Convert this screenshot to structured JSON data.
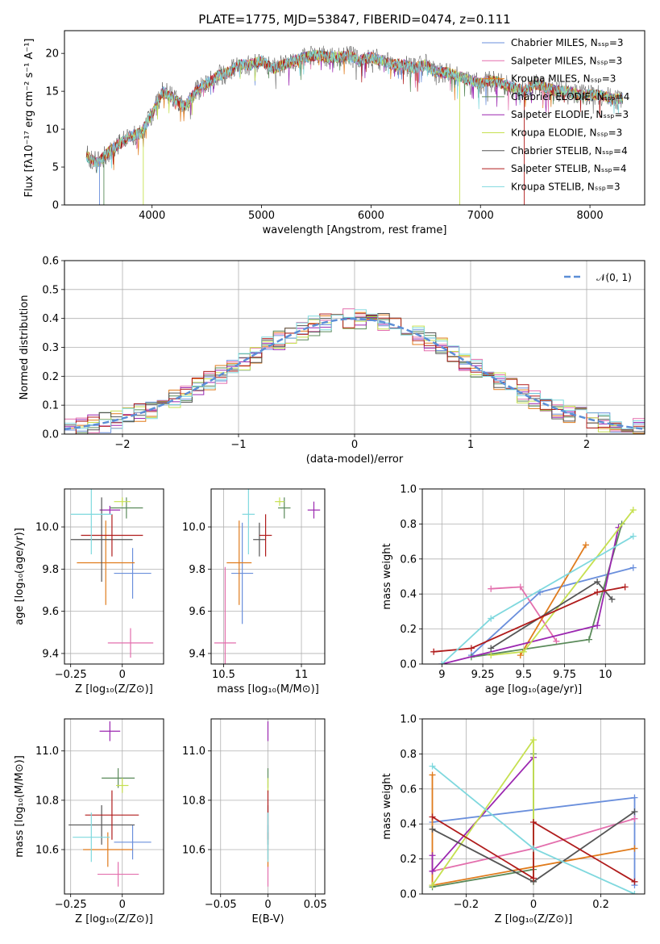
{
  "colors": [
    "#6a8fdc",
    "#e36fad",
    "#e07b1c",
    "#5a8a5a",
    "#9b27b0",
    "#c6e050",
    "#555555",
    "#b01c1c",
    "#7fd8de"
  ],
  "chart_data": [
    {
      "id": "spectrum",
      "type": "line",
      "title": "PLATE=1775, MJD=53847, FIBERID=0474, z=0.111",
      "xlabel": "wavelength [Angstrom, rest frame]",
      "ylabel": "Flux [fλ10⁻¹⁷ erg cm⁻² s⁻¹ A⁻¹]",
      "xlim": [
        3200,
        8500
      ],
      "ylim": [
        0,
        23
      ],
      "xticks": [
        4000,
        5000,
        6000,
        7000,
        8000
      ],
      "yticks": [
        0,
        5,
        10,
        15,
        20
      ],
      "legend_position": "top-right",
      "legend": [
        "Chabrier MILES, Nₛₛₚ=3",
        "Salpeter MILES, Nₛₛₚ=3",
        "Kroupa MILES, Nₛₛₚ=3",
        "Chabrier ELODIE, Nₛₛₚ=4",
        "Salpeter ELODIE, Nₛₛₚ=3",
        "Kroupa ELODIE, Nₛₛₚ=3",
        "Chabrier STELIB, Nₛₛₚ=4",
        "Salpeter STELIB, Nₛₛₚ=4",
        "Kroupa STELIB, Nₛₛₚ=3"
      ],
      "envelope": [
        [
          3400,
          6.5
        ],
        [
          3500,
          5.5
        ],
        [
          3600,
          7
        ],
        [
          3700,
          8
        ],
        [
          3800,
          9
        ],
        [
          3900,
          9.5
        ],
        [
          4000,
          12
        ],
        [
          4100,
          15
        ],
        [
          4200,
          14
        ],
        [
          4300,
          13
        ],
        [
          4400,
          15
        ],
        [
          4500,
          16
        ],
        [
          4600,
          17
        ],
        [
          4700,
          17.5
        ],
        [
          4800,
          18.5
        ],
        [
          4900,
          18.5
        ],
        [
          5000,
          19
        ],
        [
          5100,
          18
        ],
        [
          5200,
          18.5
        ],
        [
          5300,
          19
        ],
        [
          5400,
          19.5
        ],
        [
          5500,
          19.8
        ],
        [
          5600,
          19.5
        ],
        [
          5700,
          19.5
        ],
        [
          5800,
          19.7
        ],
        [
          5900,
          19
        ],
        [
          6000,
          19.5
        ],
        [
          6100,
          19
        ],
        [
          6200,
          18.5
        ],
        [
          6300,
          18.5
        ],
        [
          6400,
          18
        ],
        [
          6500,
          18.5
        ],
        [
          6600,
          17.5
        ],
        [
          6700,
          17.5
        ],
        [
          6800,
          17
        ],
        [
          6900,
          16.5
        ],
        [
          7000,
          16
        ],
        [
          7100,
          16.5
        ],
        [
          7200,
          16
        ],
        [
          7300,
          15.5
        ],
        [
          7400,
          15
        ],
        [
          7500,
          16
        ],
        [
          7600,
          15.5
        ],
        [
          7700,
          15
        ],
        [
          7800,
          15
        ],
        [
          7900,
          14.5
        ],
        [
          8000,
          14.5
        ],
        [
          8100,
          14.5
        ],
        [
          8200,
          14
        ],
        [
          8300,
          14
        ]
      ],
      "dropouts": [
        3520,
        3560,
        3920,
        6810,
        7400
      ]
    },
    {
      "id": "residuals",
      "type": "bar",
      "xlabel": "(data-model)/error",
      "ylabel": "Normed distribution",
      "xlim": [
        -2.5,
        2.5
      ],
      "ylim": [
        0,
        0.6
      ],
      "xticks": [
        -2,
        -1,
        0,
        1,
        2
      ],
      "yticks": [
        0.0,
        0.1,
        0.2,
        0.3,
        0.4,
        0.5,
        0.6
      ],
      "legend": [
        "𝒩(0, 1)"
      ],
      "legend_position": "top-right",
      "bin_width": 0.1,
      "grid": true
    },
    {
      "id": "age-vs-Z",
      "type": "scatter",
      "xlabel": "Z [log₁₀(Z/Z⊙)]",
      "ylabel": "age  [log₁₀(age/yr)]",
      "xlim": [
        -0.28,
        0.2
      ],
      "ylim": [
        9.35,
        10.18
      ],
      "xticks": [
        -0.25,
        0.0
      ],
      "yticks": [
        9.4,
        9.6,
        9.8,
        10.0
      ],
      "points": [
        {
          "x": 0.05,
          "xerr": 0.09,
          "y": 9.78,
          "yerr": 0.12
        },
        {
          "x": 0.04,
          "xerr": 0.11,
          "y": 9.45,
          "yerr": 0.07
        },
        {
          "x": -0.08,
          "xerr": 0.14,
          "y": 9.83,
          "yerr": 0.2
        },
        {
          "x": 0.02,
          "xerr": 0.08,
          "y": 10.09,
          "yerr": 0.05
        },
        {
          "x": -0.06,
          "xerr": 0.05,
          "y": 10.08,
          "yerr": 0.02
        },
        {
          "x": 0.0,
          "xerr": 0.04,
          "y": 10.12,
          "yerr": 0.02
        },
        {
          "x": -0.1,
          "xerr": 0.15,
          "y": 9.94,
          "yerr": 0.2
        },
        {
          "x": -0.05,
          "xerr": 0.15,
          "y": 9.96,
          "yerr": 0.1
        },
        {
          "x": -0.15,
          "xerr": 0.1,
          "y": 10.06,
          "yerr": 0.19
        }
      ]
    },
    {
      "id": "age-vs-mass",
      "type": "scatter",
      "xlabel": "mass [log₁₀(M/M⊙)]",
      "ylabel": "",
      "xlim": [
        10.42,
        11.15
      ],
      "ylim": [
        9.35,
        10.18
      ],
      "xticks": [
        10.5,
        11.0
      ],
      "yticks": [
        9.4,
        9.6,
        9.8,
        10.0
      ],
      "points": [
        {
          "x": 10.62,
          "xerr": 0.07,
          "y": 9.78,
          "yerr": 0.24
        },
        {
          "x": 10.51,
          "xerr": 0.07,
          "y": 9.45,
          "yerr": 0.36
        },
        {
          "x": 10.6,
          "xerr": 0.08,
          "y": 9.83,
          "yerr": 0.2
        },
        {
          "x": 10.89,
          "xerr": 0.04,
          "y": 10.09,
          "yerr": 0.05
        },
        {
          "x": 11.08,
          "xerr": 0.04,
          "y": 10.08,
          "yerr": 0.04
        },
        {
          "x": 10.86,
          "xerr": 0.03,
          "y": 10.12,
          "yerr": 0.02
        },
        {
          "x": 10.73,
          "xerr": 0.04,
          "y": 9.94,
          "yerr": 0.08
        },
        {
          "x": 10.77,
          "xerr": 0.04,
          "y": 9.96,
          "yerr": 0.1
        },
        {
          "x": 10.66,
          "xerr": 0.04,
          "y": 10.06,
          "yerr": 0.19
        }
      ]
    },
    {
      "id": "weight-vs-age",
      "type": "line",
      "xlabel": "age  [log₁₀(age/yr)]",
      "ylabel": "mass weight",
      "xlim": [
        8.88,
        10.24
      ],
      "ylim": [
        0,
        1.0
      ],
      "xticks": [
        9.0,
        9.25,
        9.5,
        9.75,
        10.0
      ],
      "yticks": [
        0.0,
        0.2,
        0.4,
        0.6,
        0.8,
        1.0
      ],
      "series": [
        {
          "points": [
            [
              9.18,
              0.05
            ],
            [
              9.6,
              0.41
            ],
            [
              10.17,
              0.55
            ]
          ]
        },
        {
          "points": [
            [
              9.3,
              0.43
            ],
            [
              9.48,
              0.44
            ],
            [
              9.7,
              0.13
            ]
          ]
        },
        {
          "points": [
            [
              9.48,
              0.05
            ],
            [
              9.88,
              0.68
            ]
          ]
        },
        {
          "points": [
            [
              9.18,
              0.04
            ],
            [
              9.9,
              0.14
            ],
            [
              10.1,
              0.8
            ]
          ]
        },
        {
          "points": [
            [
              9.0,
              0.0
            ],
            [
              9.95,
              0.22
            ],
            [
              10.08,
              0.78
            ]
          ]
        },
        {
          "points": [
            [
              9.3,
              0.05
            ],
            [
              9.5,
              0.07
            ],
            [
              10.17,
              0.88
            ]
          ]
        },
        {
          "points": [
            [
              9.3,
              0.09
            ],
            [
              9.95,
              0.47
            ],
            [
              10.04,
              0.37
            ]
          ]
        },
        {
          "points": [
            [
              8.95,
              0.07
            ],
            [
              9.18,
              0.09
            ],
            [
              9.95,
              0.41
            ],
            [
              10.12,
              0.44
            ]
          ]
        },
        {
          "points": [
            [
              9.0,
              0.0
            ],
            [
              9.3,
              0.26
            ],
            [
              10.17,
              0.73
            ]
          ]
        }
      ]
    },
    {
      "id": "mass-vs-Z",
      "type": "scatter",
      "xlabel": "Z [log₁₀(Z/Z⊙)]",
      "ylabel": "mass [log₁₀(M/M⊙)]",
      "xlim": [
        -0.28,
        0.2
      ],
      "ylim": [
        10.42,
        11.13
      ],
      "xticks": [
        -0.25,
        0.0
      ],
      "yticks": [
        10.6,
        10.8,
        11.0
      ],
      "points": [
        {
          "x": 0.05,
          "xerr": 0.09,
          "y": 10.63,
          "yerr": 0.07
        },
        {
          "x": -0.02,
          "xerr": 0.1,
          "y": 10.5,
          "yerr": 0.05
        },
        {
          "x": -0.07,
          "xerr": 0.12,
          "y": 10.6,
          "yerr": 0.07
        },
        {
          "x": -0.02,
          "xerr": 0.08,
          "y": 10.89,
          "yerr": 0.04
        },
        {
          "x": -0.06,
          "xerr": 0.05,
          "y": 11.08,
          "yerr": 0.04
        },
        {
          "x": 0.0,
          "xerr": 0.03,
          "y": 10.86,
          "yerr": 0.03
        },
        {
          "x": -0.1,
          "xerr": 0.16,
          "y": 10.7,
          "yerr": 0.08
        },
        {
          "x": -0.05,
          "xerr": 0.13,
          "y": 10.74,
          "yerr": 0.1
        },
        {
          "x": -0.15,
          "xerr": 0.09,
          "y": 10.65,
          "yerr": 0.1
        }
      ]
    },
    {
      "id": "mass-vs-EBV",
      "type": "scatter",
      "xlabel": "E(B-V)",
      "ylabel": "",
      "xlim": [
        -0.06,
        0.06
      ],
      "ylim": [
        10.42,
        11.13
      ],
      "xticks": [
        -0.05,
        0.0,
        0.05
      ],
      "yticks": [
        10.6,
        10.8,
        11.0
      ],
      "points": [
        {
          "x": 0,
          "xerr": 0,
          "y": 10.63,
          "yerr": 0.07
        },
        {
          "x": 0,
          "xerr": 0,
          "y": 10.5,
          "yerr": 0.05
        },
        {
          "x": 0,
          "xerr": 0,
          "y": 10.6,
          "yerr": 0.07
        },
        {
          "x": 0,
          "xerr": 0,
          "y": 10.89,
          "yerr": 0.04
        },
        {
          "x": 0,
          "xerr": 0,
          "y": 11.08,
          "yerr": 0.04
        },
        {
          "x": 0,
          "xerr": 0,
          "y": 10.86,
          "yerr": 0.03
        },
        {
          "x": 0,
          "xerr": 0,
          "y": 10.7,
          "yerr": 0.08
        },
        {
          "x": 0,
          "xerr": 0,
          "y": 10.74,
          "yerr": 0.1
        },
        {
          "x": 0,
          "xerr": 0,
          "y": 10.65,
          "yerr": 0.1
        }
      ]
    },
    {
      "id": "weight-vs-Z",
      "type": "line",
      "xlabel": "Z [log₁₀(Z/Z⊙)]",
      "ylabel": "mass weight",
      "xlim": [
        -0.33,
        0.33
      ],
      "ylim": [
        0,
        1.0
      ],
      "xticks": [
        -0.2,
        0.0,
        0.2
      ],
      "yticks": [
        0.0,
        0.2,
        0.4,
        0.6,
        0.8,
        1.0
      ],
      "series": [
        {
          "points": [
            [
              -0.3,
              0.41
            ],
            [
              0.3,
              0.55
            ],
            [
              0.3,
              0.05
            ]
          ]
        },
        {
          "points": [
            [
              -0.3,
              0.13
            ],
            [
              0.0,
              0.26
            ],
            [
              0.3,
              0.43
            ]
          ]
        },
        {
          "points": [
            [
              -0.3,
              0.68
            ],
            [
              -0.3,
              0.05
            ],
            [
              0.3,
              0.26
            ]
          ]
        },
        {
          "points": [
            [
              -0.3,
              0.04
            ],
            [
              0.0,
              0.14
            ],
            [
              0.0,
              0.8
            ]
          ]
        },
        {
          "points": [
            [
              -0.3,
              0.22
            ],
            [
              -0.3,
              0.13
            ],
            [
              0.0,
              0.78
            ]
          ]
        },
        {
          "points": [
            [
              -0.3,
              0.05
            ],
            [
              0.0,
              0.88
            ],
            [
              0.0,
              0.07
            ]
          ]
        },
        {
          "points": [
            [
              -0.3,
              0.37
            ],
            [
              0.0,
              0.07
            ],
            [
              0.3,
              0.47
            ]
          ]
        },
        {
          "points": [
            [
              -0.3,
              0.44
            ],
            [
              0.0,
              0.09
            ],
            [
              0.0,
              0.41
            ],
            [
              0.3,
              0.07
            ]
          ]
        },
        {
          "points": [
            [
              -0.3,
              0.73
            ],
            [
              0.0,
              0.26
            ],
            [
              0.3,
              0.0
            ]
          ]
        }
      ]
    }
  ]
}
